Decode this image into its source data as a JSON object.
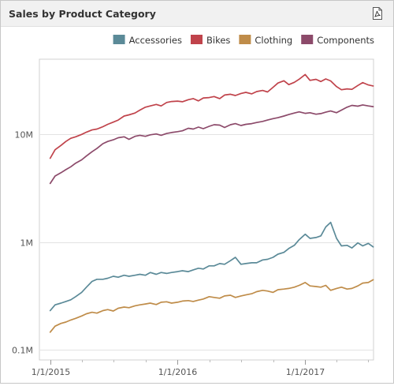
{
  "panel": {
    "title": "Sales by Product Category",
    "export_icon": "pdf-export-icon"
  },
  "chart_data": {
    "type": "line",
    "title": "",
    "xlabel": "",
    "ylabel": "",
    "y_scale": "log",
    "ylim": [
      0.08,
      50
    ],
    "y_unit": "millions",
    "yticks": [
      {
        "value": 0.1,
        "label": "0.1M"
      },
      {
        "value": 1,
        "label": "1M"
      },
      {
        "value": 10,
        "label": "10M"
      }
    ],
    "xlim": [
      "2014-12-01",
      "2017-07-16"
    ],
    "xticks": [
      {
        "value": "2015-01-01",
        "label": "1/1/2015"
      },
      {
        "value": "2016-01-01",
        "label": "1/1/2016"
      },
      {
        "value": "2017-01-01",
        "label": "1/1/2017"
      }
    ],
    "grid": true,
    "legend_position": "top-right",
    "series": [
      {
        "name": "Accessories",
        "color": "#5b8a98",
        "points": [
          [
            "2015-01-01",
            0.23
          ],
          [
            "2015-01-15",
            0.26
          ],
          [
            "2015-02-01",
            0.27
          ],
          [
            "2015-02-15",
            0.28
          ],
          [
            "2015-03-01",
            0.29
          ],
          [
            "2015-03-15",
            0.31
          ],
          [
            "2015-04-01",
            0.34
          ],
          [
            "2015-04-15",
            0.38
          ],
          [
            "2015-05-01",
            0.43
          ],
          [
            "2015-05-15",
            0.45
          ],
          [
            "2015-06-01",
            0.45
          ],
          [
            "2015-06-15",
            0.46
          ],
          [
            "2015-07-01",
            0.48
          ],
          [
            "2015-07-15",
            0.47
          ],
          [
            "2015-08-01",
            0.49
          ],
          [
            "2015-08-15",
            0.48
          ],
          [
            "2015-09-01",
            0.49
          ],
          [
            "2015-09-15",
            0.5
          ],
          [
            "2015-10-01",
            0.49
          ],
          [
            "2015-10-15",
            0.52
          ],
          [
            "2015-11-01",
            0.5
          ],
          [
            "2015-11-15",
            0.52
          ],
          [
            "2015-12-01",
            0.51
          ],
          [
            "2015-12-15",
            0.52
          ],
          [
            "2016-01-01",
            0.53
          ],
          [
            "2016-01-15",
            0.54
          ],
          [
            "2016-02-01",
            0.53
          ],
          [
            "2016-02-15",
            0.55
          ],
          [
            "2016-03-01",
            0.57
          ],
          [
            "2016-03-15",
            0.56
          ],
          [
            "2016-04-01",
            0.6
          ],
          [
            "2016-04-15",
            0.6
          ],
          [
            "2016-05-01",
            0.63
          ],
          [
            "2016-05-15",
            0.62
          ],
          [
            "2016-06-01",
            0.67
          ],
          [
            "2016-06-15",
            0.72
          ],
          [
            "2016-07-01",
            0.62
          ],
          [
            "2016-07-15",
            0.63
          ],
          [
            "2016-08-01",
            0.64
          ],
          [
            "2016-08-15",
            0.64
          ],
          [
            "2016-09-01",
            0.68
          ],
          [
            "2016-09-15",
            0.69
          ],
          [
            "2016-10-01",
            0.72
          ],
          [
            "2016-10-15",
            0.77
          ],
          [
            "2016-11-01",
            0.8
          ],
          [
            "2016-11-15",
            0.87
          ],
          [
            "2016-12-01",
            0.93
          ],
          [
            "2016-12-15",
            1.05
          ],
          [
            "2017-01-01",
            1.18
          ],
          [
            "2017-01-15",
            1.08
          ],
          [
            "2017-02-01",
            1.1
          ],
          [
            "2017-02-15",
            1.14
          ],
          [
            "2017-03-01",
            1.38
          ],
          [
            "2017-03-15",
            1.52
          ],
          [
            "2017-04-01",
            1.08
          ],
          [
            "2017-04-15",
            0.92
          ],
          [
            "2017-05-01",
            0.93
          ],
          [
            "2017-05-15",
            0.88
          ],
          [
            "2017-06-01",
            0.98
          ],
          [
            "2017-06-15",
            0.92
          ],
          [
            "2017-07-01",
            0.97
          ],
          [
            "2017-07-15",
            0.9
          ]
        ]
      },
      {
        "name": "Bikes",
        "color": "#c0434b",
        "points": [
          [
            "2015-01-01",
            6.0
          ],
          [
            "2015-01-15",
            7.2
          ],
          [
            "2015-02-01",
            7.9
          ],
          [
            "2015-02-15",
            8.6
          ],
          [
            "2015-03-01",
            9.2
          ],
          [
            "2015-03-15",
            9.5
          ],
          [
            "2015-04-01",
            10.0
          ],
          [
            "2015-04-15",
            10.5
          ],
          [
            "2015-05-01",
            11.0
          ],
          [
            "2015-05-15",
            11.2
          ],
          [
            "2015-06-01",
            11.8
          ],
          [
            "2015-06-15",
            12.4
          ],
          [
            "2015-07-01",
            13.0
          ],
          [
            "2015-07-15",
            13.6
          ],
          [
            "2015-08-01",
            14.8
          ],
          [
            "2015-08-15",
            15.2
          ],
          [
            "2015-09-01",
            15.8
          ],
          [
            "2015-09-15",
            16.8
          ],
          [
            "2015-10-01",
            17.9
          ],
          [
            "2015-10-15",
            18.4
          ],
          [
            "2015-11-01",
            19.0
          ],
          [
            "2015-11-15",
            18.4
          ],
          [
            "2015-12-01",
            19.8
          ],
          [
            "2015-12-15",
            20.2
          ],
          [
            "2016-01-01",
            20.4
          ],
          [
            "2016-01-15",
            20.1
          ],
          [
            "2016-02-01",
            21.0
          ],
          [
            "2016-02-15",
            21.5
          ],
          [
            "2016-03-01",
            20.5
          ],
          [
            "2016-03-15",
            21.8
          ],
          [
            "2016-04-01",
            22.0
          ],
          [
            "2016-04-15",
            22.5
          ],
          [
            "2016-05-01",
            21.5
          ],
          [
            "2016-05-15",
            23.2
          ],
          [
            "2016-06-01",
            23.6
          ],
          [
            "2016-06-15",
            23.0
          ],
          [
            "2016-07-01",
            24.0
          ],
          [
            "2016-07-15",
            24.6
          ],
          [
            "2016-08-01",
            23.8
          ],
          [
            "2016-08-15",
            25.0
          ],
          [
            "2016-09-01",
            25.6
          ],
          [
            "2016-09-15",
            24.8
          ],
          [
            "2016-10-01",
            27.4
          ],
          [
            "2016-10-15",
            30.0
          ],
          [
            "2016-11-01",
            31.5
          ],
          [
            "2016-11-15",
            29.0
          ],
          [
            "2016-12-01",
            30.5
          ],
          [
            "2016-12-15",
            32.6
          ],
          [
            "2017-01-01",
            36.0
          ],
          [
            "2017-01-15",
            31.8
          ],
          [
            "2017-02-01",
            32.5
          ],
          [
            "2017-02-15",
            31.0
          ],
          [
            "2017-03-01",
            32.8
          ],
          [
            "2017-03-15",
            31.4
          ],
          [
            "2017-04-01",
            27.8
          ],
          [
            "2017-04-15",
            26.0
          ],
          [
            "2017-05-01",
            26.5
          ],
          [
            "2017-05-15",
            26.2
          ],
          [
            "2017-06-01",
            28.5
          ],
          [
            "2017-06-15",
            30.3
          ],
          [
            "2017-07-01",
            28.8
          ],
          [
            "2017-07-15",
            28.2
          ]
        ]
      },
      {
        "name": "Clothing",
        "color": "#bf8c49",
        "points": [
          [
            "2015-01-01",
            0.145
          ],
          [
            "2015-01-15",
            0.165
          ],
          [
            "2015-02-01",
            0.175
          ],
          [
            "2015-02-15",
            0.18
          ],
          [
            "2015-03-01",
            0.188
          ],
          [
            "2015-03-15",
            0.195
          ],
          [
            "2015-04-01",
            0.205
          ],
          [
            "2015-04-15",
            0.215
          ],
          [
            "2015-05-01",
            0.222
          ],
          [
            "2015-05-15",
            0.218
          ],
          [
            "2015-06-01",
            0.23
          ],
          [
            "2015-06-15",
            0.235
          ],
          [
            "2015-07-01",
            0.228
          ],
          [
            "2015-07-15",
            0.242
          ],
          [
            "2015-08-01",
            0.248
          ],
          [
            "2015-08-15",
            0.245
          ],
          [
            "2015-09-01",
            0.255
          ],
          [
            "2015-09-15",
            0.26
          ],
          [
            "2015-10-01",
            0.265
          ],
          [
            "2015-10-15",
            0.27
          ],
          [
            "2015-11-01",
            0.262
          ],
          [
            "2015-11-15",
            0.275
          ],
          [
            "2015-12-01",
            0.278
          ],
          [
            "2015-12-15",
            0.27
          ],
          [
            "2016-01-01",
            0.275
          ],
          [
            "2016-01-15",
            0.282
          ],
          [
            "2016-02-01",
            0.285
          ],
          [
            "2016-02-15",
            0.28
          ],
          [
            "2016-03-01",
            0.288
          ],
          [
            "2016-03-15",
            0.295
          ],
          [
            "2016-04-01",
            0.31
          ],
          [
            "2016-04-15",
            0.305
          ],
          [
            "2016-05-01",
            0.3
          ],
          [
            "2016-05-15",
            0.315
          ],
          [
            "2016-06-01",
            0.32
          ],
          [
            "2016-06-15",
            0.305
          ],
          [
            "2016-07-01",
            0.315
          ],
          [
            "2016-07-15",
            0.322
          ],
          [
            "2016-08-01",
            0.33
          ],
          [
            "2016-08-15",
            0.345
          ],
          [
            "2016-09-01",
            0.355
          ],
          [
            "2016-09-15",
            0.35
          ],
          [
            "2016-10-01",
            0.34
          ],
          [
            "2016-10-15",
            0.36
          ],
          [
            "2016-11-01",
            0.365
          ],
          [
            "2016-11-15",
            0.37
          ],
          [
            "2016-12-01",
            0.38
          ],
          [
            "2016-12-15",
            0.395
          ],
          [
            "2017-01-01",
            0.42
          ],
          [
            "2017-01-15",
            0.39
          ],
          [
            "2017-02-01",
            0.385
          ],
          [
            "2017-02-15",
            0.38
          ],
          [
            "2017-03-01",
            0.395
          ],
          [
            "2017-03-15",
            0.355
          ],
          [
            "2017-04-01",
            0.37
          ],
          [
            "2017-04-15",
            0.38
          ],
          [
            "2017-05-01",
            0.365
          ],
          [
            "2017-05-15",
            0.37
          ],
          [
            "2017-06-01",
            0.39
          ],
          [
            "2017-06-15",
            0.415
          ],
          [
            "2017-07-01",
            0.42
          ],
          [
            "2017-07-15",
            0.445
          ]
        ]
      },
      {
        "name": "Components",
        "color": "#8c4a6a",
        "points": [
          [
            "2015-01-01",
            3.5
          ],
          [
            "2015-01-15",
            4.1
          ],
          [
            "2015-02-01",
            4.4
          ],
          [
            "2015-02-15",
            4.7
          ],
          [
            "2015-03-01",
            5.0
          ],
          [
            "2015-03-15",
            5.4
          ],
          [
            "2015-04-01",
            5.8
          ],
          [
            "2015-04-15",
            6.3
          ],
          [
            "2015-05-01",
            6.9
          ],
          [
            "2015-05-15",
            7.4
          ],
          [
            "2015-06-01",
            8.2
          ],
          [
            "2015-06-15",
            8.6
          ],
          [
            "2015-07-01",
            8.9
          ],
          [
            "2015-07-15",
            9.3
          ],
          [
            "2015-08-01",
            9.5
          ],
          [
            "2015-08-15",
            9.0
          ],
          [
            "2015-09-01",
            9.6
          ],
          [
            "2015-09-15",
            9.8
          ],
          [
            "2015-10-01",
            9.6
          ],
          [
            "2015-10-15",
            9.9
          ],
          [
            "2015-11-01",
            10.1
          ],
          [
            "2015-11-15",
            9.8
          ],
          [
            "2015-12-01",
            10.2
          ],
          [
            "2015-12-15",
            10.4
          ],
          [
            "2016-01-01",
            10.6
          ],
          [
            "2016-01-15",
            10.8
          ],
          [
            "2016-02-01",
            11.4
          ],
          [
            "2016-02-15",
            11.2
          ],
          [
            "2016-03-01",
            11.7
          ],
          [
            "2016-03-15",
            11.3
          ],
          [
            "2016-04-01",
            11.9
          ],
          [
            "2016-04-15",
            12.3
          ],
          [
            "2016-05-01",
            12.2
          ],
          [
            "2016-05-15",
            11.6
          ],
          [
            "2016-06-01",
            12.3
          ],
          [
            "2016-06-15",
            12.6
          ],
          [
            "2016-07-01",
            12.1
          ],
          [
            "2016-07-15",
            12.4
          ],
          [
            "2016-08-01",
            12.6
          ],
          [
            "2016-08-15",
            12.9
          ],
          [
            "2016-09-01",
            13.2
          ],
          [
            "2016-09-15",
            13.6
          ],
          [
            "2016-10-01",
            14.0
          ],
          [
            "2016-10-15",
            14.3
          ],
          [
            "2016-11-01",
            14.8
          ],
          [
            "2016-11-15",
            15.3
          ],
          [
            "2016-12-01",
            15.8
          ],
          [
            "2016-12-15",
            16.2
          ],
          [
            "2017-01-01",
            15.7
          ],
          [
            "2017-01-15",
            15.9
          ],
          [
            "2017-02-01",
            15.4
          ],
          [
            "2017-02-15",
            15.6
          ],
          [
            "2017-03-01",
            16.1
          ],
          [
            "2017-03-15",
            16.5
          ],
          [
            "2017-04-01",
            15.9
          ],
          [
            "2017-04-15",
            16.8
          ],
          [
            "2017-05-01",
            17.9
          ],
          [
            "2017-05-15",
            18.6
          ],
          [
            "2017-06-01",
            18.3
          ],
          [
            "2017-06-15",
            18.8
          ],
          [
            "2017-07-01",
            18.4
          ],
          [
            "2017-07-15",
            18.1
          ]
        ]
      }
    ]
  }
}
